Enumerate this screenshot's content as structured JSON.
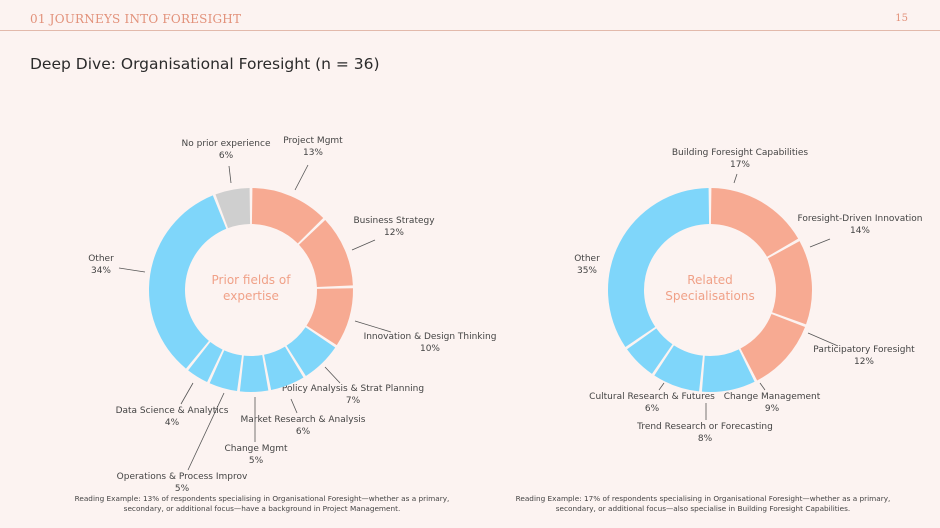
{
  "header": {
    "section": "01 JOURNEYS INTO FORESIGHT",
    "page_number": "15"
  },
  "title": "Deep Dive: Organisational Foresight (n = 36)",
  "colors": {
    "salmon": "#f7aa92",
    "blue": "#7fd6fa",
    "grey": "#cfcfcf",
    "center_text": "#f0a188",
    "header_accent": "#e2917a"
  },
  "chart_data": [
    {
      "type": "pie",
      "donut": true,
      "center_label": [
        "Prior fields of",
        "expertise"
      ],
      "slices": [
        {
          "label": "Project Mgmt",
          "value": 13,
          "display": "13%",
          "color": "salmon"
        },
        {
          "label": "Business Strategy",
          "value": 12,
          "display": "12%",
          "color": "salmon"
        },
        {
          "label": "Innovation & Design Thinking",
          "value": 10,
          "display": "10%",
          "color": "salmon"
        },
        {
          "label": "Policy Analysis & Strat Planning",
          "value": 7,
          "display": "7%",
          "color": "blue"
        },
        {
          "label": "Market Research & Analysis",
          "value": 6,
          "display": "6%",
          "color": "blue"
        },
        {
          "label": "Change Mgmt",
          "value": 5,
          "display": "5%",
          "color": "blue"
        },
        {
          "label": "Operations & Process Improv",
          "value": 5,
          "display": "5%",
          "color": "blue"
        },
        {
          "label": "Data Science & Analytics",
          "value": 4,
          "display": "4%",
          "color": "blue"
        },
        {
          "label": "Other",
          "value": 34,
          "display": "34%",
          "color": "blue"
        },
        {
          "label": "No prior experience",
          "value": 6,
          "display": "6%",
          "color": "grey"
        }
      ]
    },
    {
      "type": "pie",
      "donut": true,
      "center_label": [
        "Related",
        "Specialisations"
      ],
      "slices": [
        {
          "label": "Building Foresight Capabilities",
          "value": 17,
          "display": "17%",
          "color": "salmon"
        },
        {
          "label": "Foresight-Driven Innovation",
          "value": 14,
          "display": "14%",
          "color": "salmon"
        },
        {
          "label": "Participatory Foresight",
          "value": 12,
          "display": "12%",
          "color": "salmon"
        },
        {
          "label": "Change Management",
          "value": 9,
          "display": "9%",
          "color": "blue"
        },
        {
          "label": "Trend Research or Forecasting",
          "value": 8,
          "display": "8%",
          "color": "blue"
        },
        {
          "label": "Cultural Research & Futures",
          "value": 6,
          "display": "6%",
          "color": "blue"
        },
        {
          "label": "Other",
          "value": 35,
          "display": "35%",
          "color": "blue"
        }
      ]
    }
  ],
  "footnotes": {
    "left": "Reading Example: 13% of respondents specialising in Organisational Foresight—whether as a primary, secondary, or additional focus—have a background in Project Management.",
    "right": "Reading Example: 17% of respondents specialising in Organisational Foresight—whether as a primary, secondary, or additional focus—also specialise in Building Foresight Capabilities."
  }
}
